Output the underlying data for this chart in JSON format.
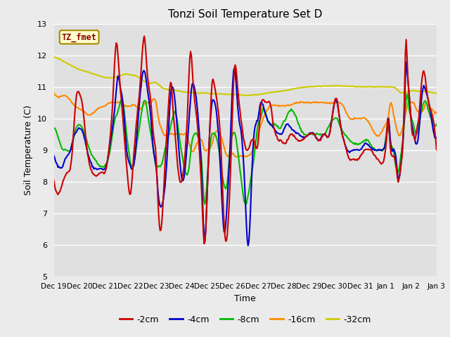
{
  "title": "Tonzi Soil Temperature Set D",
  "xlabel": "Time",
  "ylabel": "Soil Temperature (C)",
  "ylim": [
    5.0,
    13.0
  ],
  "yticks": [
    5.0,
    6.0,
    7.0,
    8.0,
    9.0,
    10.0,
    11.0,
    12.0,
    13.0
  ],
  "fig_bg": "#ebebeb",
  "plot_bg": "#e0e0e0",
  "series_colors": {
    "-2cm": "#cc0000",
    "-4cm": "#0000cc",
    "-8cm": "#00bb00",
    "-16cm": "#ff8800",
    "-32cm": "#cccc00"
  },
  "x_tick_labels": [
    "Dec 19",
    "Dec 20",
    "Dec 21",
    "Dec 22",
    "Dec 23",
    "Dec 24",
    "Dec 25",
    "Dec 26",
    "Dec 27",
    "Dec 28",
    "Dec 29",
    "Dec 30",
    "Dec 31",
    "Jan 1",
    "Jan 2",
    "Jan 3"
  ],
  "tz_label": "TZ_fmet",
  "tz_color": "#8B0000",
  "tz_bg": "#ffffcc",
  "tz_border": "#aa8800",
  "legend_entries": [
    "-2cm",
    "-4cm",
    "-8cm",
    "-16cm",
    "-32cm"
  ],
  "linewidth": 1.5
}
